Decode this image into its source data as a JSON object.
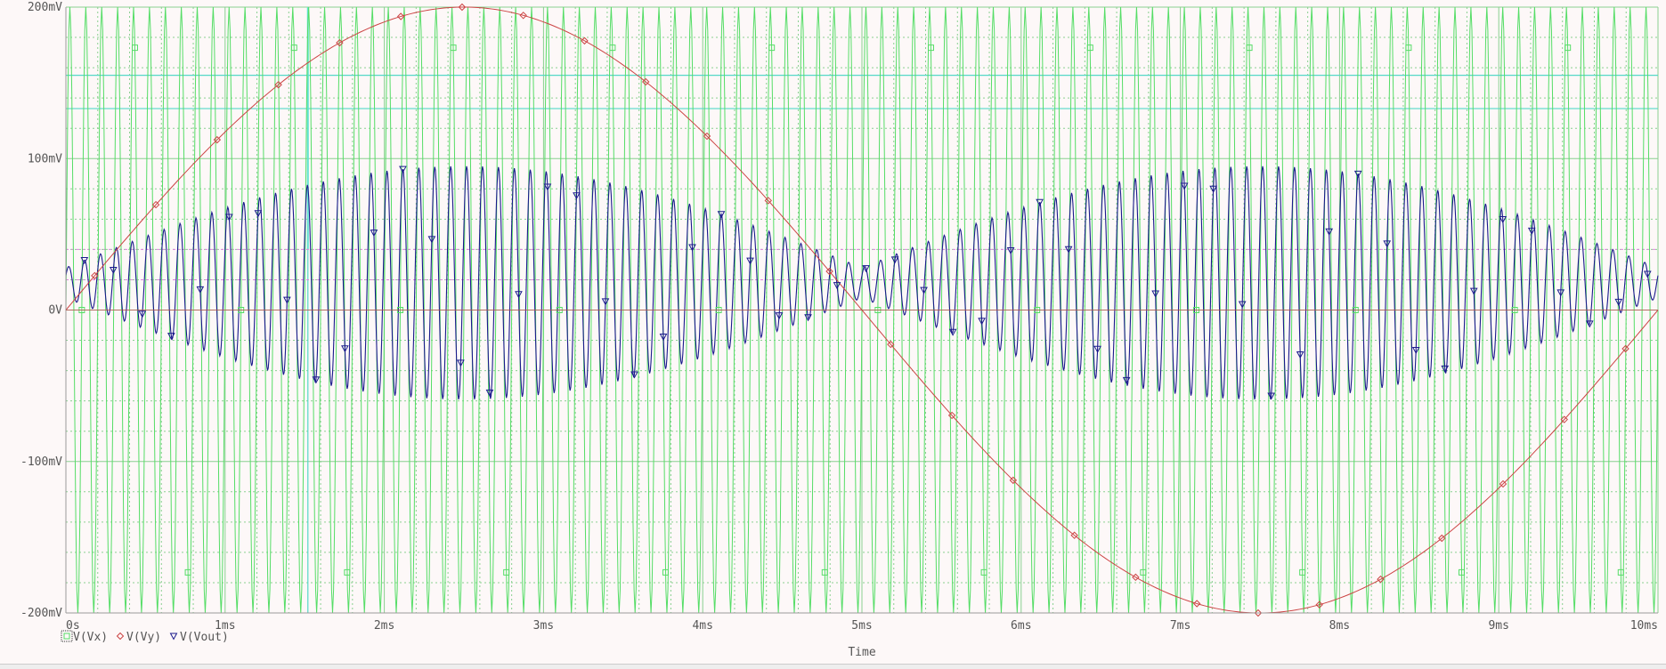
{
  "chart_data": {
    "type": "line",
    "xlabel": "Time",
    "ylabel": "",
    "xlim": [
      0,
      10
    ],
    "x_unit": "ms",
    "ylim": [
      -200,
      200
    ],
    "y_unit": "mV",
    "x_ticks": [
      "0s",
      "1ms",
      "2ms",
      "3ms",
      "4ms",
      "5ms",
      "6ms",
      "7ms",
      "8ms",
      "9ms",
      "10ms"
    ],
    "y_ticks": [
      "200mV",
      "100mV",
      "0V",
      "-100mV",
      "-200mV"
    ],
    "grid": true,
    "legend_position": "bottom-left",
    "series": [
      {
        "name": "V(Vx)",
        "color": "#55dd66",
        "marker": "square",
        "description_values": {
          "amplitude_mV": 200,
          "frequency_kHz": 10,
          "offset_mV": 0
        }
      },
      {
        "name": "V(Vy)",
        "color": "#cc4444",
        "marker": "diamond",
        "description_values": {
          "amplitude_mV": 200,
          "frequency_kHz": 0.1,
          "offset_mV": 0
        }
      },
      {
        "name": "V(Vout)",
        "color": "#1a1a8c",
        "marker": "triangle-down",
        "description_values": {
          "center_mV": 18,
          "min_envelope_mV": 10,
          "max_envelope_mV": 77,
          "frequency_kHz": 10
        }
      }
    ],
    "reference_lines_mV": [
      155,
      133
    ]
  }
}
